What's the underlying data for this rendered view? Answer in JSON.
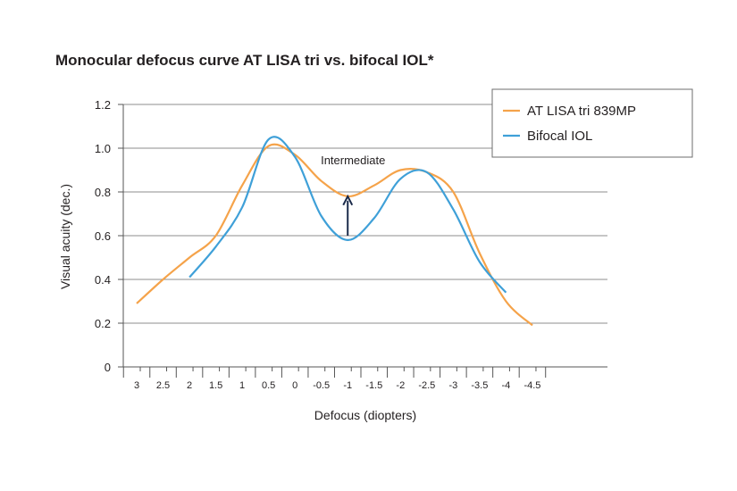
{
  "chart_data": {
    "type": "line",
    "title": "Monocular defocus curve AT LISA tri vs. bifocal IOL*",
    "xlabel": "Defocus (diopters)",
    "ylabel": "Visual acuity (dec.)",
    "xtick_labels": [
      "3",
      "2.5",
      "2",
      "1.5",
      "1",
      "0.5",
      "0",
      "-0.5",
      "-1",
      "-1.5",
      "-2",
      "-2.5",
      "-3",
      "-3.5",
      "-4",
      "-4.5"
    ],
    "ytick_labels": [
      "0",
      "0.2",
      "0.4",
      "0.6",
      "0.8",
      "1.0",
      "1.2"
    ],
    "xlim": [
      3,
      -4.5
    ],
    "ylim": [
      0,
      1.2
    ],
    "grid": "horizontal",
    "legend_position": "top-right",
    "annotation": "Intermediate",
    "series": [
      {
        "name": "AT LISA tri 839MP",
        "color": "#f5a34a",
        "x": [
          3,
          2.5,
          2,
          1.5,
          1,
          0.5,
          0,
          -0.5,
          -1,
          -1.5,
          -2,
          -2.5,
          -3,
          -3.5,
          -4,
          -4.5
        ],
        "y": [
          0.29,
          0.4,
          0.5,
          0.6,
          0.83,
          1.01,
          0.97,
          0.85,
          0.78,
          0.83,
          0.9,
          0.89,
          0.8,
          0.52,
          0.3,
          0.19
        ]
      },
      {
        "name": "Bifocal IOL",
        "color": "#3fa0d8",
        "x": [
          2,
          1.5,
          1,
          0.5,
          0,
          -0.5,
          -1,
          -1.5,
          -2,
          -2.5,
          -3,
          -3.5,
          -4
        ],
        "y": [
          0.41,
          0.55,
          0.73,
          1.04,
          0.96,
          0.69,
          0.58,
          0.68,
          0.86,
          0.89,
          0.72,
          0.48,
          0.34
        ]
      }
    ]
  }
}
